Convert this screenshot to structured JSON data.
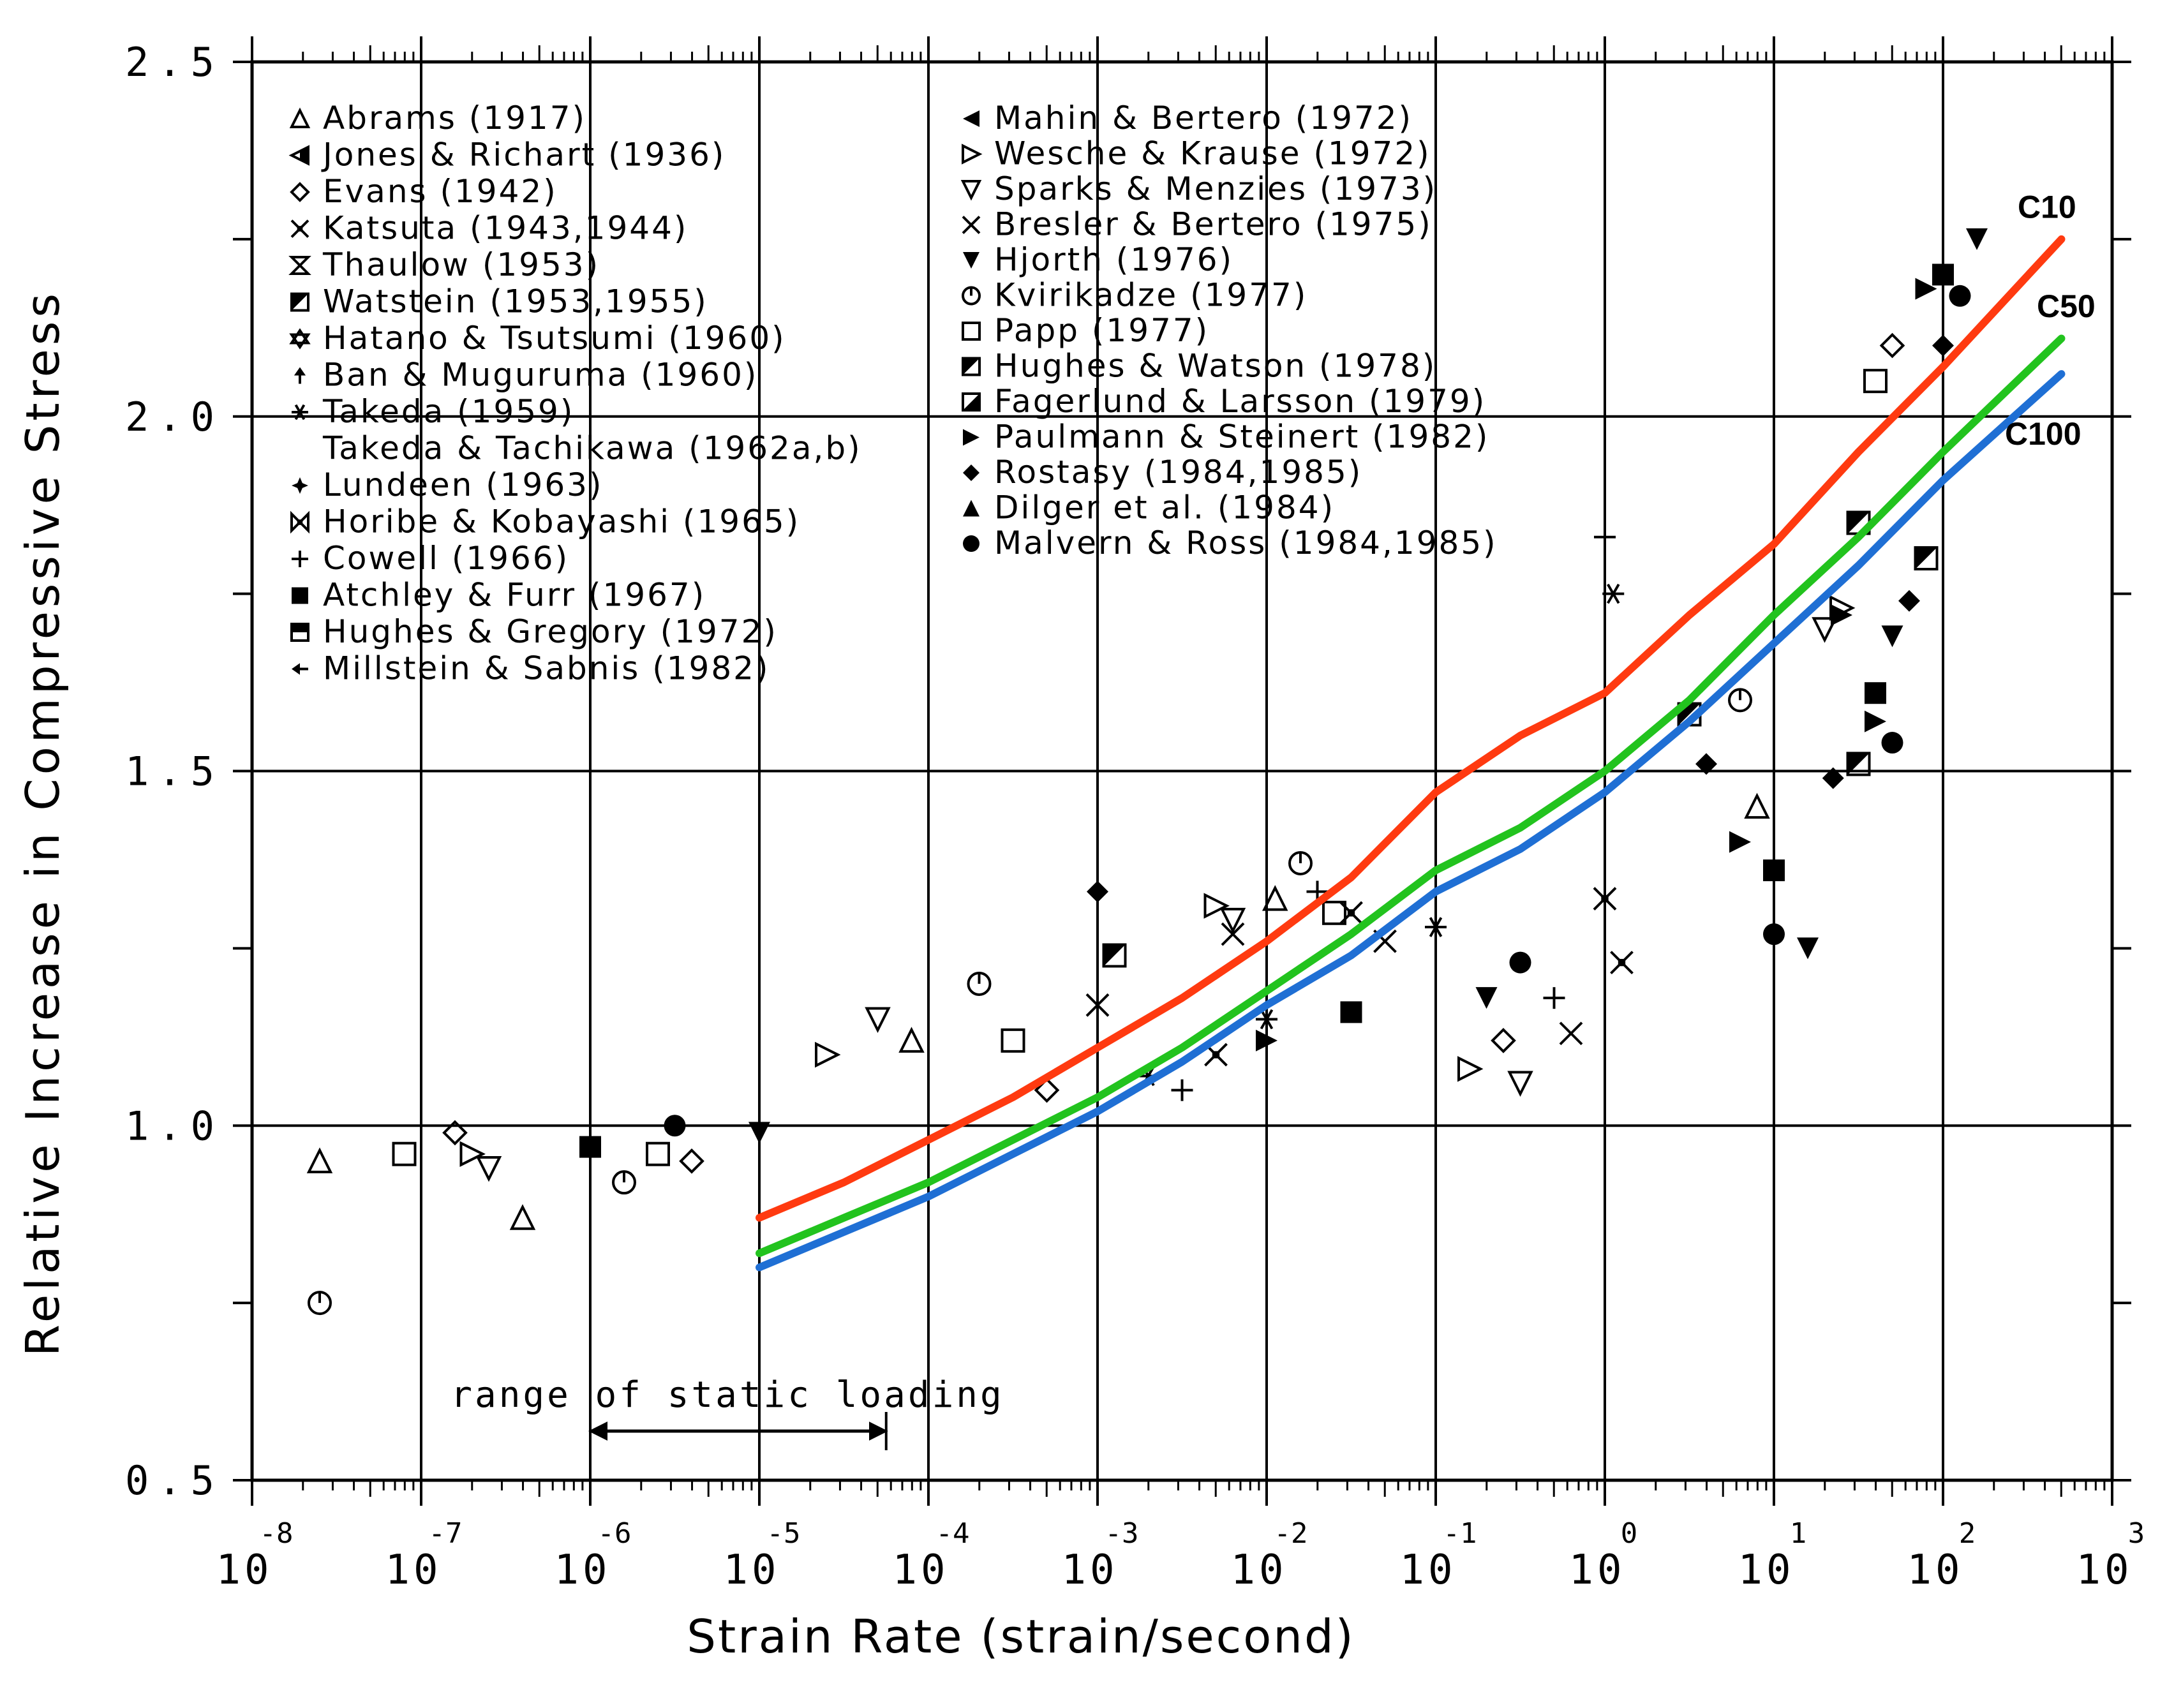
{
  "chart_data": {
    "type": "scatter",
    "title": "",
    "xlabel": "Strain Rate (strain/second)",
    "ylabel": "Relative Increase in Compressive Stress",
    "xscale": "log",
    "xlim_exponent": [
      -8,
      3
    ],
    "x_tick_base": "10",
    "x_tick_exponents": [
      "-8",
      "-7",
      "-6",
      "-5",
      "-4",
      "-3",
      "-2",
      "-1",
      "0",
      "1",
      "2",
      "3"
    ],
    "ylim": [
      0.5,
      2.5
    ],
    "y_ticks": [
      "0.5",
      "1.0",
      "1.5",
      "2.0",
      "2.5"
    ],
    "grid": "major gridlines at decades and 0.5 stress steps",
    "legend_position": "top-left",
    "legend": {
      "left": [
        {
          "marker": "triangle-open",
          "label": "Abrams (1917)"
        },
        {
          "marker": "triangle-left-half",
          "label": "Jones & Richart (1936)"
        },
        {
          "marker": "diamond-open",
          "label": "Evans (1942)"
        },
        {
          "marker": "star-x",
          "label": "Katsuta (1943,1944)"
        },
        {
          "marker": "hourglass",
          "label": "Thaulow (1953)"
        },
        {
          "marker": "square-diag",
          "label": "Watstein (1953,1955)"
        },
        {
          "marker": "star-of-david",
          "label": "Hatano & Tsutsumi (1960)"
        },
        {
          "marker": "arrow-up",
          "label": "Ban & Muguruma (1960)"
        },
        {
          "marker": "asterisk",
          "label": "Takeda (1959)"
        },
        {
          "marker": "none",
          "label": "Takeda & Tachikawa (1962a,b)"
        },
        {
          "marker": "burst",
          "label": "Lundeen (1963)"
        },
        {
          "marker": "bowtie-x",
          "label": "Horibe & Kobayashi (1965)"
        },
        {
          "marker": "plus",
          "label": "Cowell (1966)"
        },
        {
          "marker": "square-filled",
          "label": "Atchley & Furr (1967)"
        },
        {
          "marker": "square-half",
          "label": "Hughes & Gregory (1972)"
        },
        {
          "marker": "arrow-left",
          "label": "Millstein & Sabnis (1982)"
        }
      ],
      "right": [
        {
          "marker": "triangle-left-filled",
          "label": "Mahin & Bertero (1972)"
        },
        {
          "marker": "triangle-right-open",
          "label": "Wesche & Krause (1972)"
        },
        {
          "marker": "triangle-down-open",
          "label": "Sparks & Menzies (1973)"
        },
        {
          "marker": "x",
          "label": "Bresler & Bertero (1975)"
        },
        {
          "marker": "triangle-down-filled",
          "label": "Hjorth (1976)"
        },
        {
          "marker": "circle-tick",
          "label": "Kvirikadze (1977)"
        },
        {
          "marker": "square-open",
          "label": "Papp (1977)"
        },
        {
          "marker": "square-diag",
          "label": "Hughes & Watson (1978)"
        },
        {
          "marker": "square-corner",
          "label": "Fagerlund & Larsson (1979)"
        },
        {
          "marker": "triangle-right-filled",
          "label": "Paulmann & Steinert (1982)"
        },
        {
          "marker": "diamond-filled",
          "label": "Rostasy (1984,1985)"
        },
        {
          "marker": "triangle-filled",
          "label": "Dilger et al. (1984)"
        },
        {
          "marker": "circle-filled",
          "label": "Malvern & Ross (1984,1985)"
        }
      ]
    },
    "annotation": "range of static loading",
    "annotation_range_exponent": [
      -6,
      -4.25
    ],
    "curves": [
      {
        "name": "C10",
        "color": "#ff3a10",
        "points": [
          [
            -5,
            0.87
          ],
          [
            -4.5,
            0.92
          ],
          [
            -4,
            0.98
          ],
          [
            -3.5,
            1.04
          ],
          [
            -3,
            1.11
          ],
          [
            -2.5,
            1.18
          ],
          [
            -2,
            1.26
          ],
          [
            -1.5,
            1.35
          ],
          [
            -1,
            1.47
          ],
          [
            -0.5,
            1.55
          ],
          [
            0,
            1.61
          ],
          [
            0.5,
            1.72
          ],
          [
            1,
            1.82
          ],
          [
            1.5,
            1.95
          ],
          [
            2,
            2.07
          ],
          [
            2.7,
            2.25
          ]
        ]
      },
      {
        "name": "C50",
        "color": "#22c31e",
        "points": [
          [
            -5,
            0.82
          ],
          [
            -4.5,
            0.87
          ],
          [
            -4,
            0.92
          ],
          [
            -3.5,
            0.98
          ],
          [
            -3,
            1.04
          ],
          [
            -2.5,
            1.11
          ],
          [
            -2,
            1.19
          ],
          [
            -1.5,
            1.27
          ],
          [
            -1,
            1.36
          ],
          [
            -0.5,
            1.42
          ],
          [
            0,
            1.5
          ],
          [
            0.5,
            1.6
          ],
          [
            1,
            1.72
          ],
          [
            1.5,
            1.83
          ],
          [
            2,
            1.95
          ],
          [
            2.7,
            2.11
          ]
        ]
      },
      {
        "name": "C100",
        "color": "#1f6fd4",
        "points": [
          [
            -5,
            0.8
          ],
          [
            -4.5,
            0.85
          ],
          [
            -4,
            0.9
          ],
          [
            -3.5,
            0.96
          ],
          [
            -3,
            1.02
          ],
          [
            -2.5,
            1.09
          ],
          [
            -2,
            1.17
          ],
          [
            -1.5,
            1.24
          ],
          [
            -1,
            1.33
          ],
          [
            -0.5,
            1.39
          ],
          [
            0,
            1.47
          ],
          [
            0.5,
            1.57
          ],
          [
            1,
            1.68
          ],
          [
            1.5,
            1.79
          ],
          [
            2,
            1.91
          ],
          [
            2.7,
            2.06
          ]
        ]
      }
    ],
    "series": [
      {
        "name": "open",
        "points": [
          [
            -7.6,
            0.95
          ],
          [
            -7.6,
            0.75
          ],
          [
            -7.1,
            0.96
          ],
          [
            -6.8,
            0.99
          ],
          [
            -6.7,
            0.96
          ],
          [
            -6.6,
            0.94
          ],
          [
            -6.4,
            0.87
          ],
          [
            -5.8,
            0.92
          ],
          [
            -5.6,
            0.96
          ],
          [
            -5.4,
            0.95
          ],
          [
            -4.6,
            1.1
          ],
          [
            -4.3,
            1.15
          ],
          [
            -4.1,
            1.12
          ],
          [
            -3.7,
            1.2
          ],
          [
            -3.5,
            1.12
          ],
          [
            -3.3,
            1.05
          ],
          [
            -2.3,
            1.31
          ],
          [
            -2.2,
            1.29
          ],
          [
            -1.95,
            1.32
          ],
          [
            -1.8,
            1.37
          ],
          [
            -1.6,
            1.3
          ],
          [
            -0.6,
            1.12
          ],
          [
            -0.8,
            1.08
          ],
          [
            -0.5,
            1.06
          ],
          [
            0.9,
            1.45
          ],
          [
            0.8,
            1.6
          ],
          [
            1.6,
            2.05
          ],
          [
            1.7,
            2.1
          ],
          [
            1.4,
            1.73
          ],
          [
            1.3,
            1.7
          ]
        ]
      },
      {
        "name": "cross",
        "points": [
          [
            -3,
            1.17
          ],
          [
            -2.7,
            1.07
          ],
          [
            -2.5,
            1.05
          ],
          [
            -2.3,
            1.1
          ],
          [
            -2.2,
            1.27
          ],
          [
            -2,
            1.15
          ],
          [
            -1.7,
            1.33
          ],
          [
            -1.5,
            1.3
          ],
          [
            -1.3,
            1.26
          ],
          [
            -1,
            1.28
          ],
          [
            -0.3,
            1.18
          ],
          [
            0,
            1.32
          ],
          [
            -0.2,
            1.13
          ],
          [
            0.05,
            1.75
          ],
          [
            0,
            1.83
          ],
          [
            0.1,
            1.23
          ]
        ]
      },
      {
        "name": "filled",
        "points": [
          [
            -6,
            0.97
          ],
          [
            -5.5,
            1.0
          ],
          [
            -5,
            0.99
          ],
          [
            -3,
            1.33
          ],
          [
            -2.9,
            1.24
          ],
          [
            -2,
            1.12
          ],
          [
            -1.5,
            1.16
          ],
          [
            -0.5,
            1.23
          ],
          [
            -0.7,
            1.18
          ],
          [
            0.6,
            1.51
          ],
          [
            0.5,
            1.58
          ],
          [
            0.8,
            1.4
          ],
          [
            1,
            1.36
          ],
          [
            1,
            1.27
          ],
          [
            1.2,
            1.25
          ],
          [
            1.35,
            1.49
          ],
          [
            1.5,
            1.51
          ],
          [
            1.6,
            1.57
          ],
          [
            1.6,
            1.61
          ],
          [
            1.7,
            1.54
          ],
          [
            1.7,
            1.69
          ],
          [
            1.8,
            1.74
          ],
          [
            1.9,
            1.8
          ],
          [
            1.9,
            2.18
          ],
          [
            2,
            2.2
          ],
          [
            2.1,
            2.17
          ],
          [
            2.2,
            2.25
          ],
          [
            2,
            2.1
          ],
          [
            1.5,
            1.85
          ],
          [
            1.4,
            1.72
          ]
        ]
      }
    ]
  }
}
